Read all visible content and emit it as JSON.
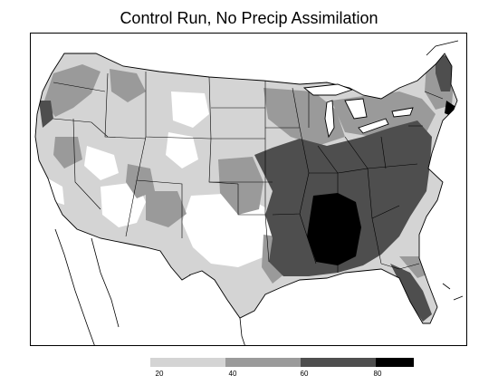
{
  "title": "Control Run, No Precip Assimilation",
  "legend": {
    "bins": [
      {
        "from": 20,
        "to": 40,
        "color": "#d4d4d4"
      },
      {
        "from": 40,
        "to": 60,
        "color": "#9a9a9a"
      },
      {
        "from": 60,
        "to": 80,
        "color": "#4e4e4e"
      },
      {
        "from": 80,
        "to": 90,
        "color": "#000000"
      }
    ],
    "tick_labels": [
      "20",
      "40",
      "60",
      "80"
    ]
  },
  "colors": {
    "none": "#ffffff",
    "light": "#d4d4d4",
    "medium": "#9a9a9a",
    "dark": "#4e4e4e",
    "black": "#000000"
  }
}
